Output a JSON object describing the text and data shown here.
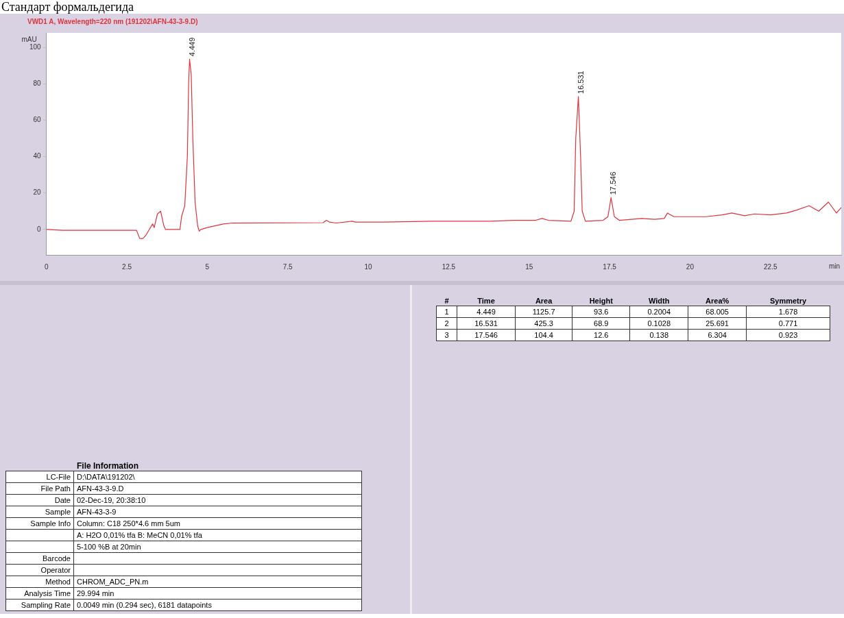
{
  "chart_data": [
    {
      "type": "line",
      "title": "Стандарт формальдегида",
      "subtitle": "VWD1 A, Wavelength=220 nm (191202\\AFN-43-3-9.D)",
      "xlabel": "min",
      "ylabel": "mAU",
      "color": "#e0323c",
      "x": [
        0,
        0.5,
        1.5,
        2.8,
        2.9,
        3.0,
        3.1,
        3.2,
        3.3,
        3.35,
        3.45,
        3.55,
        3.65,
        3.7,
        4.15,
        4.2,
        4.3,
        4.38,
        4.42,
        4.449,
        4.5,
        4.55,
        4.62,
        4.7,
        4.75,
        4.8,
        5.0,
        5.5,
        5.8,
        8.6,
        8.7,
        8.8,
        9.0,
        9.5,
        9.6,
        10.5,
        12.0,
        13.8,
        14.5,
        15.2,
        15.4,
        15.6,
        16.3,
        16.4,
        16.45,
        16.531,
        16.6,
        16.65,
        16.75,
        17.3,
        17.45,
        17.546,
        17.65,
        17.8,
        18.5,
        18.9,
        19.2,
        19.3,
        19.5,
        20.5,
        21.0,
        21.3,
        21.7,
        22.0,
        22.5,
        23.0,
        23.3,
        23.7,
        24.0,
        24.3,
        24.55,
        24.7
      ],
      "values": [
        0,
        -0.5,
        -0.5,
        -0.5,
        -5,
        -5,
        -3,
        0,
        3,
        1,
        8.5,
        10,
        2,
        0,
        0,
        7,
        13,
        40,
        80,
        93.6,
        85,
        50,
        15,
        2,
        -1,
        0,
        1,
        3,
        3.5,
        3.7,
        5,
        4,
        3.5,
        4.5,
        4,
        4,
        4.5,
        4.5,
        5,
        5,
        6,
        5,
        4.5,
        10,
        50,
        73,
        40,
        10,
        4.5,
        5,
        7,
        17.5,
        7,
        5,
        6,
        5.5,
        6,
        9,
        7,
        7,
        8,
        9,
        7.5,
        8.5,
        8,
        9,
        10.5,
        13,
        10,
        15,
        9,
        12
      ],
      "xlim": [
        0,
        24.7
      ],
      "ylim": [
        -14,
        108
      ],
      "xticks": [
        0,
        2.5,
        5,
        7.5,
        10,
        12.5,
        15,
        17.5,
        20,
        22.5
      ],
      "yticks": [
        0,
        20,
        40,
        60,
        80,
        100
      ],
      "annotations": [
        {
          "text": "4.449",
          "x": 4.449,
          "y": 93.6
        },
        {
          "text": "16.531",
          "x": 16.531,
          "y": 73
        },
        {
          "text": "17.546",
          "x": 17.546,
          "y": 17.5
        }
      ]
    },
    {
      "type": "other",
      "categories": [
        "#",
        "Time",
        "Area",
        "Height",
        "Width",
        "Area%",
        "Symmetry"
      ],
      "annotations": [
        "1",
        "4.449",
        "1125.7",
        "93.6",
        "0.2004",
        "68.005",
        "1.678",
        "2",
        "16.531",
        "425.3",
        "68.9",
        "0.1028",
        "25.691",
        "0.771",
        "3",
        "17.546",
        "104.4",
        "12.6",
        "0.138",
        "6.304",
        "0.923"
      ]
    },
    {
      "type": "other",
      "title": "File Information",
      "annotations": [
        "LC-File",
        "D:\\DATA\\191202\\",
        "File Path",
        "AFN-43-3-9.D",
        "Date",
        "02-Dec-19, 20:38:10",
        "Sample",
        "AFN-43-3-9",
        "Sample Info",
        "Column: C18 250*4.6 mm 5um",
        null,
        "A: H2O 0,01% tfa B: MeCN 0,01% tfa",
        null,
        "5-100 %B at 20min",
        "Barcode",
        null,
        "Operator",
        null,
        "Method",
        "CHROM_ADC_PN.m",
        "Analysis Time",
        "29.994 min",
        "Sampling Rate",
        "0.0049 min (0.294 sec), 6181 datapoints"
      ]
    }
  ]
}
